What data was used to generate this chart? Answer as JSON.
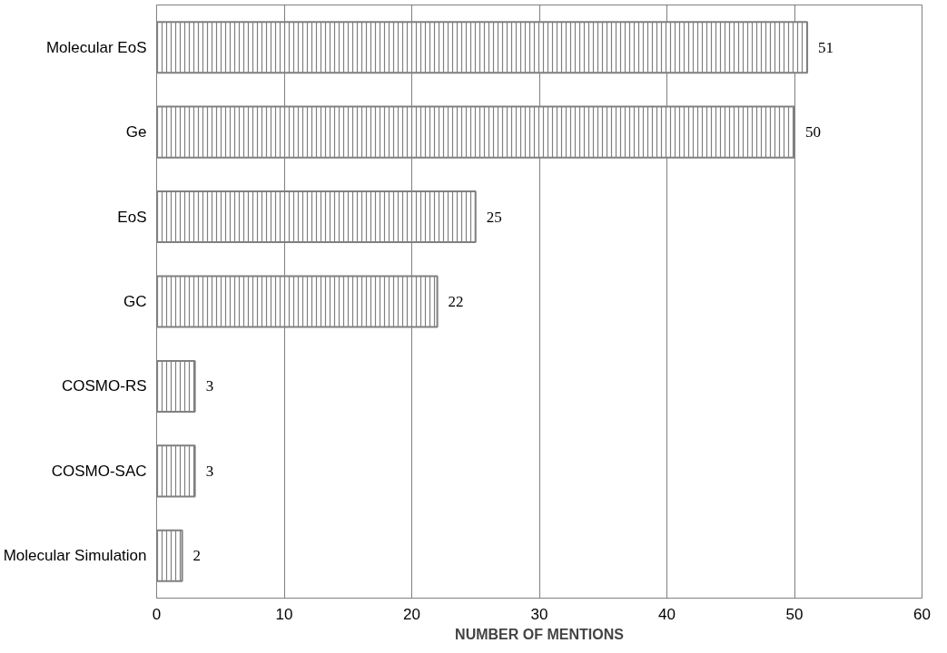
{
  "chart_data": {
    "type": "bar",
    "orientation": "horizontal",
    "xlabel": "NUMBER OF MENTIONS",
    "categories": [
      "Molecular EoS",
      "Ge",
      "EoS",
      "GC",
      "COSMO-RS",
      "COSMO-SAC",
      "Molecular Simulation"
    ],
    "values": [
      51,
      50,
      25,
      22,
      3,
      3,
      2
    ],
    "color": "#808080",
    "xlim": [
      0,
      60
    ],
    "xticks": [
      0,
      10,
      20,
      30,
      40,
      50,
      60
    ],
    "grid": "x",
    "data_labels": true
  }
}
